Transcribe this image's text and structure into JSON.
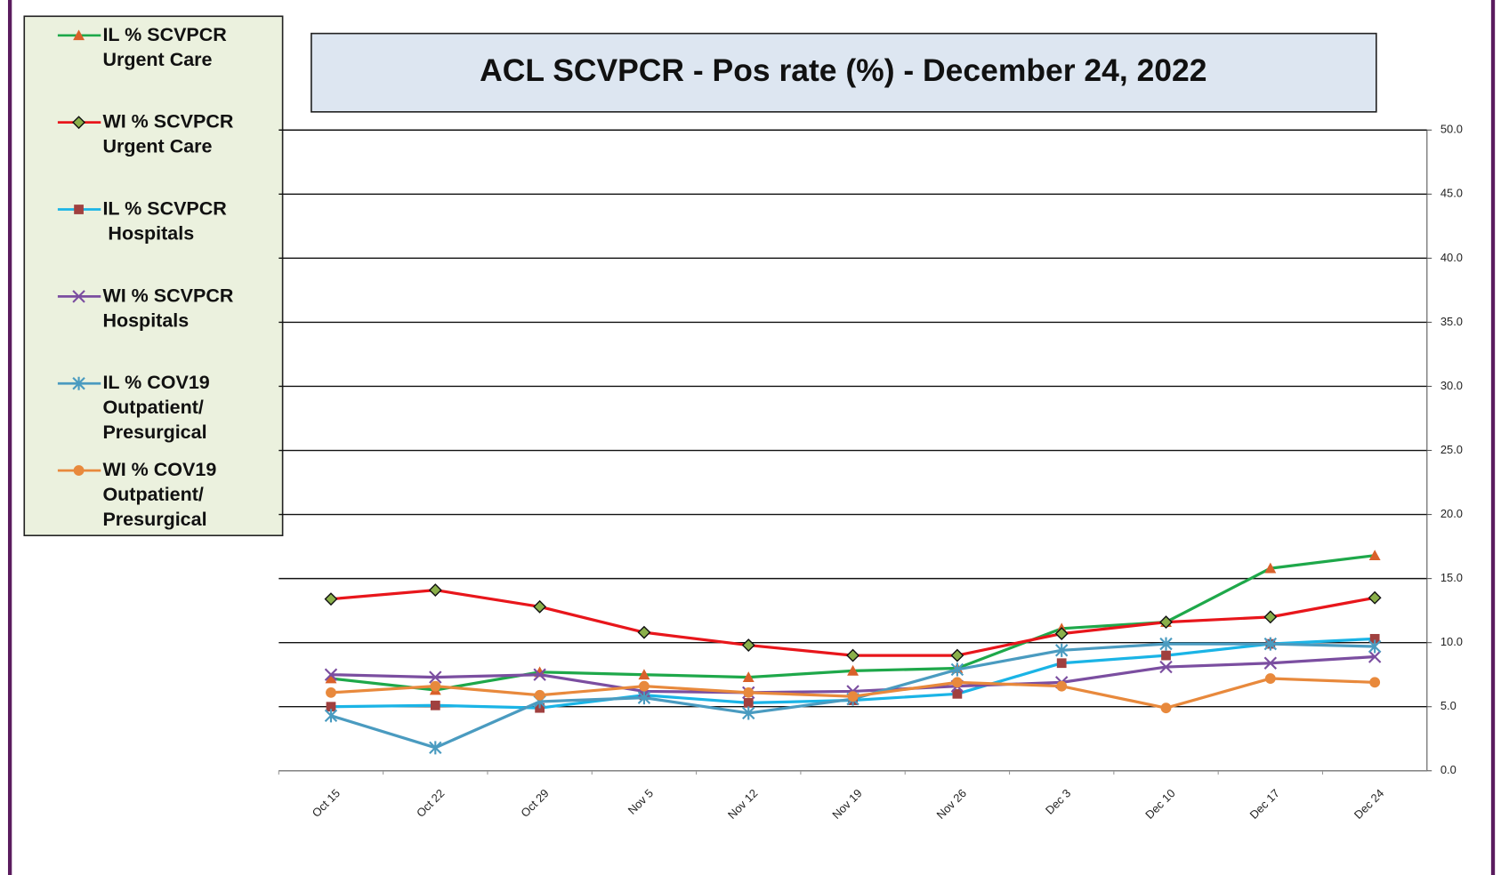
{
  "chart_data": {
    "type": "line",
    "title": "ACL SCVPCR -  Pos rate (%) - December 24, 2022",
    "categories": [
      "Oct 15",
      "Oct 22",
      "Oct 29",
      "Nov 5",
      "Nov 12",
      "Nov 19",
      "Nov 26",
      "Dec 3",
      "Dec 10",
      "Dec 17",
      "Dec 24"
    ],
    "series": [
      {
        "name": "IL % SCVPCR\nUrgent Care",
        "color": "#1ea84a",
        "marker": "triangle",
        "marker_color": "#d9612a",
        "values": [
          7.2,
          6.3,
          7.7,
          7.5,
          7.3,
          7.8,
          8.0,
          11.1,
          11.6,
          15.8,
          16.8
        ]
      },
      {
        "name": "WI % SCVPCR\nUrgent Care",
        "color": "#e8161b",
        "marker": "diamond",
        "marker_color": "#8ab04a",
        "values": [
          13.4,
          14.1,
          12.8,
          10.8,
          9.8,
          9.0,
          9.0,
          10.7,
          11.6,
          12.0,
          13.5
        ]
      },
      {
        "name": "IL % SCVPCR\n Hospitals",
        "color": "#1ab4e6",
        "marker": "square",
        "marker_color": "#a0403f",
        "values": [
          5.0,
          5.1,
          4.9,
          5.9,
          5.3,
          5.5,
          6.0,
          8.4,
          9.0,
          9.9,
          10.3
        ]
      },
      {
        "name": "WI % SCVPCR\nHospitals",
        "color": "#7b4ea0",
        "marker": "x",
        "marker_color": "#7b4ea0",
        "values": [
          7.5,
          7.3,
          7.5,
          6.2,
          6.1,
          6.2,
          6.6,
          6.9,
          8.1,
          8.4,
          8.9
        ]
      },
      {
        "name": "IL % COV19\nOutpatient/\nPresurgical",
        "color": "#4a9bc0",
        "marker": "star",
        "marker_color": "#4a9bc0",
        "values": [
          4.3,
          1.8,
          5.4,
          5.7,
          4.5,
          5.6,
          7.9,
          9.4,
          9.9,
          9.9,
          9.7
        ]
      },
      {
        "name": "WI % COV19\nOutpatient/\nPresurgical",
        "color": "#e8893c",
        "marker": "circle",
        "marker_color": "#e8893c",
        "values": [
          6.1,
          6.6,
          5.9,
          6.6,
          6.1,
          5.8,
          6.9,
          6.6,
          4.9,
          7.2,
          6.9
        ]
      }
    ],
    "ylim": [
      0,
      50
    ],
    "yticks": [
      {
        "value": 0,
        "label": "0.0"
      },
      {
        "value": 5,
        "label": "5.0"
      },
      {
        "value": 10,
        "label": "10.0"
      },
      {
        "value": 15,
        "label": "15.0"
      },
      {
        "value": 20,
        "label": "20.0"
      },
      {
        "value": 25,
        "label": "25.0"
      },
      {
        "value": 30,
        "label": "30.0"
      },
      {
        "value": 35,
        "label": "35.0"
      },
      {
        "value": 40,
        "label": "40.0"
      },
      {
        "value": 45,
        "label": "45.0"
      },
      {
        "value": 50,
        "label": "50.0"
      }
    ],
    "grid": true,
    "y_axis_side": "right",
    "legend": "left"
  }
}
